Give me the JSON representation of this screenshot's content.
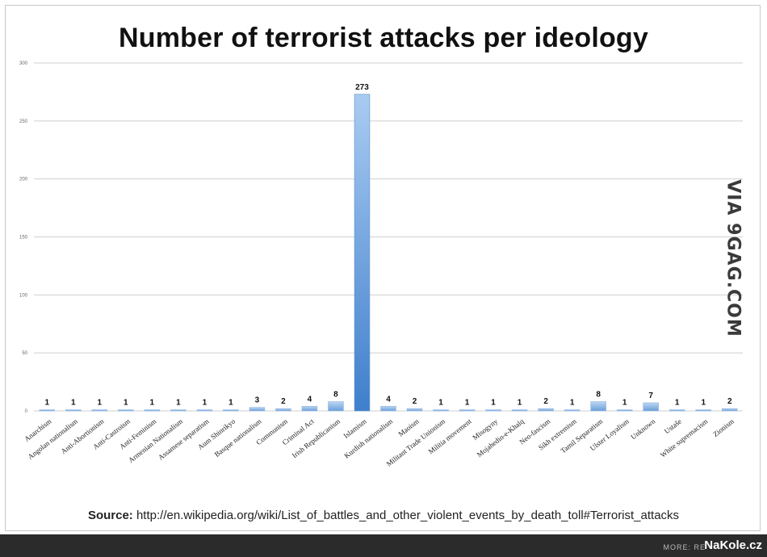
{
  "title": "Number of terrorist attacks per ideology",
  "watermark": "VIA 9GAG.COM",
  "source": {
    "label": "Source:",
    "url": "http://en.wikipedia.org/wiki/List_of_battles_and_other_violent_events_by_death_toll#Terrorist_attacks"
  },
  "footer": {
    "more": "MORE: RE",
    "brand": "NaKole.cz"
  },
  "colors": {
    "bar_top": "#bcd6f3",
    "bar_bottom": "#6a9fd8",
    "highlight_top": "#a9cbf1",
    "highlight_bottom": "#3f7fcc",
    "grid": "#cfcfcf"
  },
  "chart_data": {
    "type": "bar",
    "title": "Number of terrorist attacks per ideology",
    "xlabel": "",
    "ylabel": "",
    "ylim": [
      0,
      300
    ],
    "yticks": [
      0,
      50,
      100,
      150,
      200,
      250,
      300
    ],
    "grid": true,
    "categories": [
      "Anarchism",
      "Angolan nationalism",
      "Anti-Abortionism",
      "Anti-Castroism",
      "Anti-Feminism",
      "Armenian Nationalism",
      "Assamese separatism",
      "Aum Shinrikyo",
      "Basque nationalism",
      "Communism",
      "Criminal Act",
      "Irish Republicanism",
      "Islamism",
      "Kurdish nationalism",
      "Maoism",
      "Militant Trade Unionism",
      "Militia movement",
      "Misogyny",
      "Mojahedin-e-Khalq",
      "Neo-fascism",
      "Sikh extremism",
      "Tamil Separatism",
      "Ulster Loyalism",
      "Unknown",
      "Ustaše",
      "White supremacism",
      "Zionism"
    ],
    "values": [
      1,
      1,
      1,
      1,
      1,
      1,
      1,
      1,
      3,
      2,
      4,
      8,
      273,
      4,
      2,
      1,
      1,
      1,
      1,
      2,
      1,
      8,
      1,
      7,
      1,
      1,
      2
    ],
    "data_labels": [
      "1",
      "1",
      "1",
      "1",
      "1",
      "1",
      "1",
      "1",
      "3",
      "2",
      "4",
      "8",
      "273",
      "4",
      "2",
      "1",
      "1",
      "1",
      "1",
      "2",
      "1",
      "8",
      "1",
      "7",
      "1",
      "1",
      "2"
    ]
  }
}
